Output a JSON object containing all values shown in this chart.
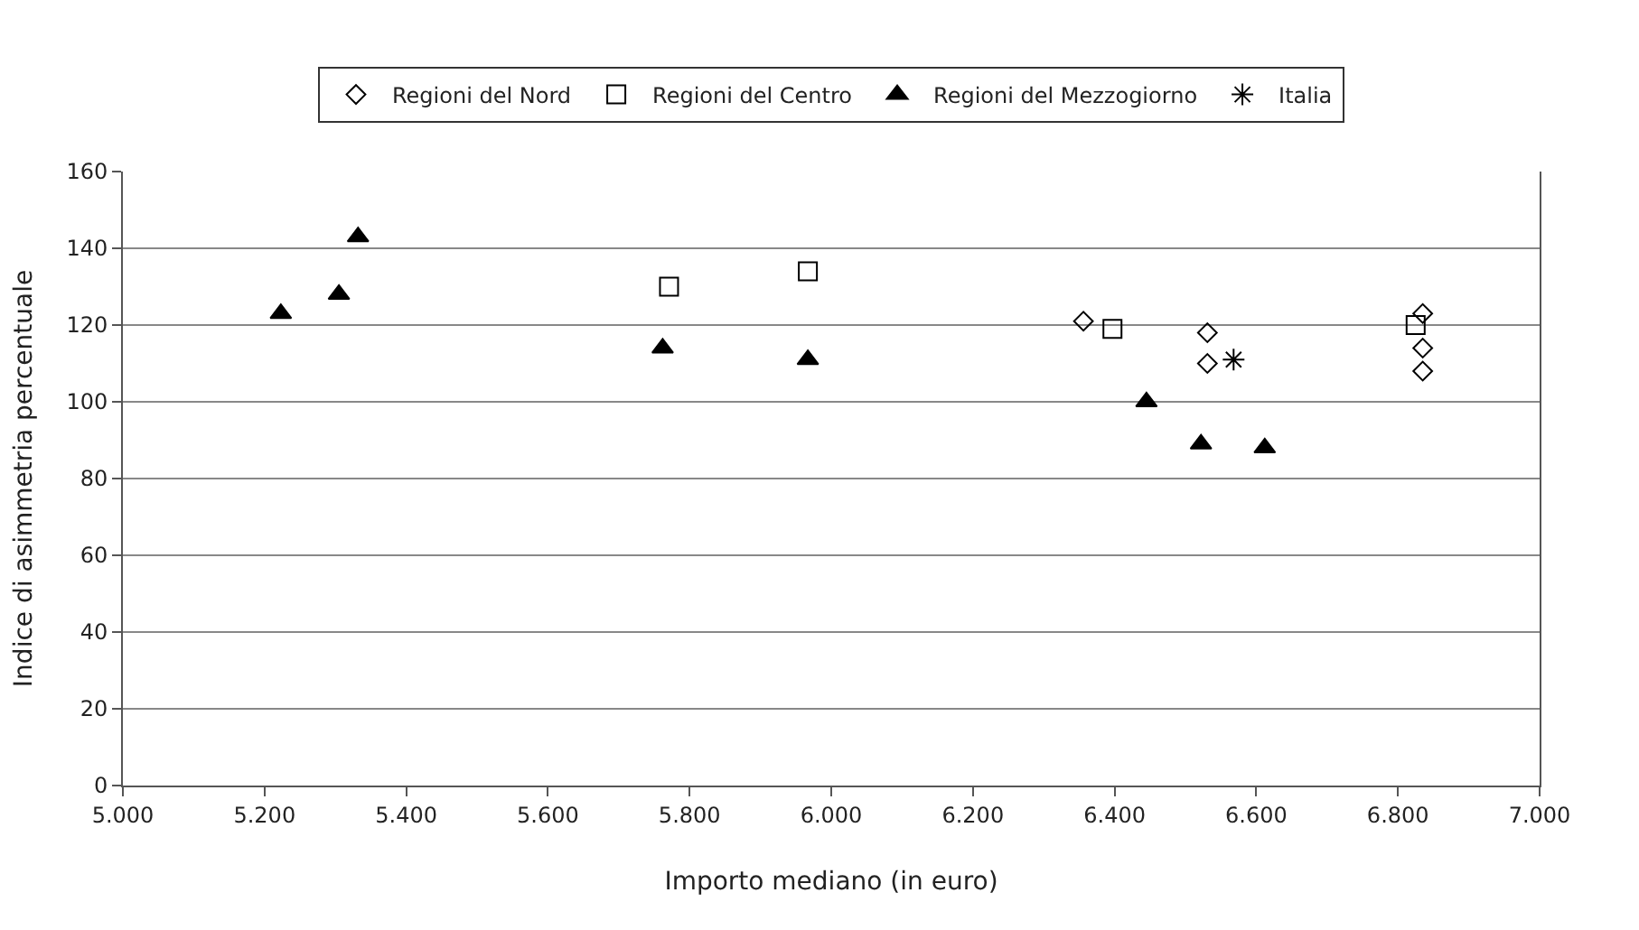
{
  "chart_data": {
    "type": "scatter",
    "xlabel": "Importo mediano (in euro)",
    "ylabel": "Indice di asimmetria percentuale",
    "xlim": [
      5000,
      7000
    ],
    "xticks": [
      {
        "value": 5000,
        "label": "5.000"
      },
      {
        "value": 5200,
        "label": "5.200"
      },
      {
        "value": 5400,
        "label": "5.400"
      },
      {
        "value": 5600,
        "label": "5.600"
      },
      {
        "value": 5800,
        "label": "5.800"
      },
      {
        "value": 6000,
        "label": "6.000"
      },
      {
        "value": 6200,
        "label": "6.200"
      },
      {
        "value": 6400,
        "label": "6.400"
      },
      {
        "value": 6600,
        "label": "6.600"
      },
      {
        "value": 6800,
        "label": "6.800"
      },
      {
        "value": 7000,
        "label": "7.000"
      }
    ],
    "ylim": [
      0,
      160
    ],
    "yticks": [
      0,
      20,
      40,
      60,
      80,
      100,
      120,
      140,
      160
    ],
    "grid": "y",
    "legend": "top",
    "series": [
      {
        "name": "Regioni del Nord",
        "color": "#000000",
        "marker": "diamond",
        "x": [
          6356,
          6531,
          6531,
          6835,
          6835,
          6835
        ],
        "values": [
          121,
          118,
          110,
          123,
          114,
          108
        ]
      },
      {
        "name": "Regioni del Centro",
        "color": "#000000",
        "marker": "square",
        "x": [
          5771,
          5967,
          6397,
          6825
        ],
        "values": [
          130,
          134,
          119,
          120
        ]
      },
      {
        "name": "Regioni del Mezzogiorno",
        "color": "#000000",
        "marker": "triangle",
        "x": [
          5223,
          5305,
          5332,
          5762,
          5967,
          6445,
          6522,
          6612
        ],
        "values": [
          123,
          128,
          143,
          114,
          111,
          100,
          89,
          88
        ]
      },
      {
        "name": "Italia",
        "color": "#000000",
        "marker": "cross",
        "x": [
          6568
        ],
        "values": [
          111
        ]
      }
    ]
  }
}
